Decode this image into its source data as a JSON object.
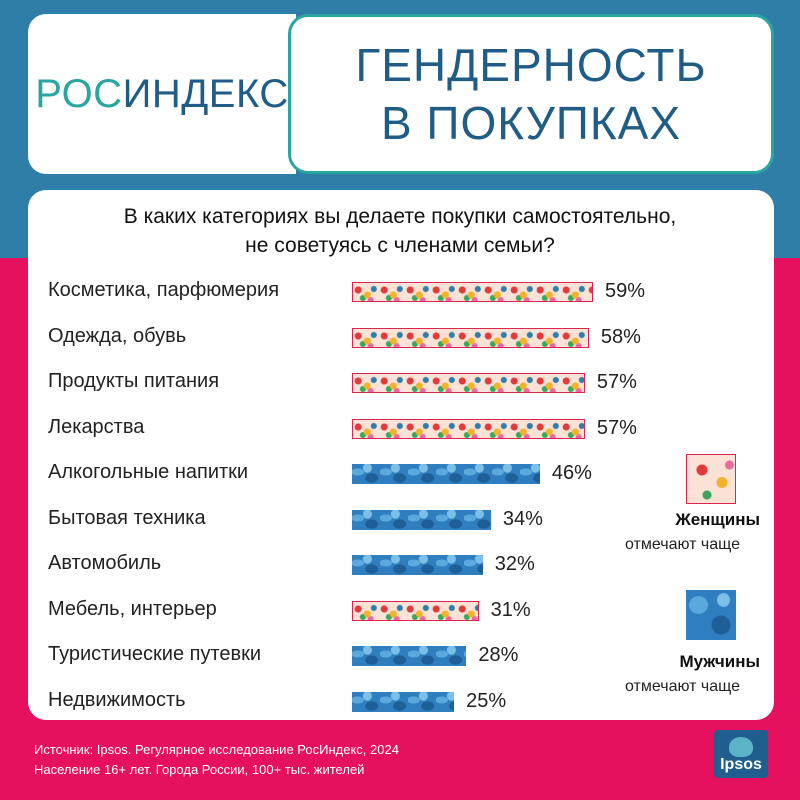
{
  "brand": {
    "logo_part1": "РОС",
    "logo_part2": "ИНДЕКС"
  },
  "title": {
    "line1": "ГЕНДЕРНОСТЬ",
    "line2": "В ПОКУПКАХ"
  },
  "question": {
    "line1": "В каких категориях вы делаете покупки самостоятельно,",
    "line2": "не советуясь с членами семьи?"
  },
  "colors": {
    "top_band": "#2f7ea8",
    "bottom_band": "#e5115f",
    "title_text": "#1f5d86",
    "logo_accent": "#2aa6a0"
  },
  "chart_data": {
    "type": "bar",
    "orientation": "horizontal",
    "title": "В каких категориях вы делаете покупки самостоятельно, не советуясь с членами семьи?",
    "unit": "%",
    "xlim": [
      0,
      100
    ],
    "grid": false,
    "legend_position": "right",
    "categories": [
      "Косметика, парфюмерия",
      "Одежда, обувь",
      "Продукты питания",
      "Лекарства",
      "Алкогольные напитки",
      "Бытовая техника",
      "Автомобиль",
      "Мебель, интерьер",
      "Туристические путевки",
      "Недвижимость"
    ],
    "values": [
      59,
      58,
      57,
      57,
      46,
      34,
      32,
      31,
      28,
      25
    ],
    "labels": [
      "59%",
      "58%",
      "57%",
      "57%",
      "46%",
      "34%",
      "32%",
      "31%",
      "28%",
      "25%"
    ],
    "group": [
      "women",
      "women",
      "women",
      "women",
      "men",
      "men",
      "men",
      "women",
      "men",
      "men"
    ]
  },
  "legend": {
    "women": {
      "title": "Женщины",
      "sub": "отмечают чаще",
      "pattern": "floral-icon"
    },
    "men": {
      "title": "Мужчины",
      "sub": "отмечают чаще",
      "pattern": "camo-icon"
    }
  },
  "source": {
    "line1": "Источник: Ipsos. Регулярное исследование РосИндекс, 2024",
    "line2": "Население 16+ лет. Города России, 100+ тыс. жителей"
  },
  "ipsos_logo": {
    "text": "Ipsos"
  }
}
